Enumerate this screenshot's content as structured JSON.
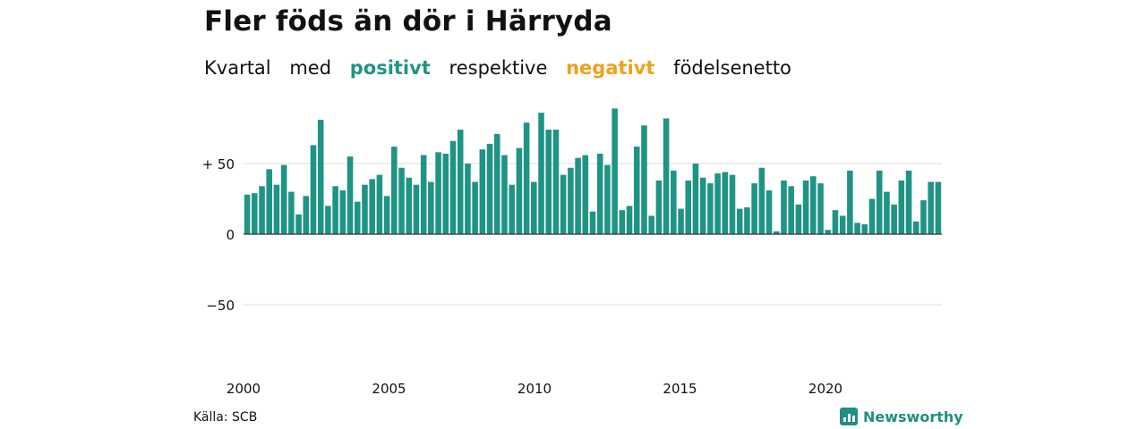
{
  "title": "Fler föds än dör i Härryda",
  "subtitle": {
    "part1": "Kvartal",
    "part2": "med",
    "positive": "positivt",
    "part3": "respektive",
    "negative": "negativt",
    "part4": "födelsenetto"
  },
  "colors": {
    "positive": "#1f9485",
    "negative": "#f0a01e",
    "grid": "#dddddd"
  },
  "source": "Källa: SCB",
  "brand": {
    "name": "Newsworthy",
    "icon": "newsworthy-logo-icon"
  },
  "chart_data": {
    "type": "bar",
    "xlabel": "",
    "ylabel": "",
    "ylim": [
      -75,
      90
    ],
    "y_ticks": [
      {
        "value": 50,
        "label": "+ 50"
      },
      {
        "value": 0,
        "label": "0"
      },
      {
        "value": -50,
        "label": "−50"
      }
    ],
    "x_range": [
      2000,
      2024
    ],
    "x_ticks": [
      "2000",
      "2005",
      "2010",
      "2015",
      "2020"
    ],
    "grid": true,
    "legend": "none",
    "start_year": 2000,
    "values": [
      28,
      29,
      34,
      46,
      35,
      49,
      30,
      14,
      27,
      63,
      81,
      20,
      34,
      31,
      55,
      23,
      35,
      39,
      42,
      27,
      62,
      47,
      40,
      35,
      56,
      37,
      58,
      57,
      66,
      74,
      50,
      37,
      60,
      64,
      71,
      56,
      35,
      61,
      79,
      37,
      86,
      74,
      74,
      42,
      47,
      54,
      56,
      16,
      57,
      49,
      89,
      17,
      20,
      62,
      77,
      13,
      38,
      82,
      45,
      18,
      38,
      50,
      40,
      36,
      43,
      44,
      42,
      18,
      19,
      36,
      47,
      31,
      2,
      38,
      34,
      21,
      38,
      41,
      36,
      3,
      17,
      13,
      45,
      8,
      7,
      25,
      45,
      30,
      21,
      38,
      45,
      9,
      24,
      37,
      37
    ]
  }
}
